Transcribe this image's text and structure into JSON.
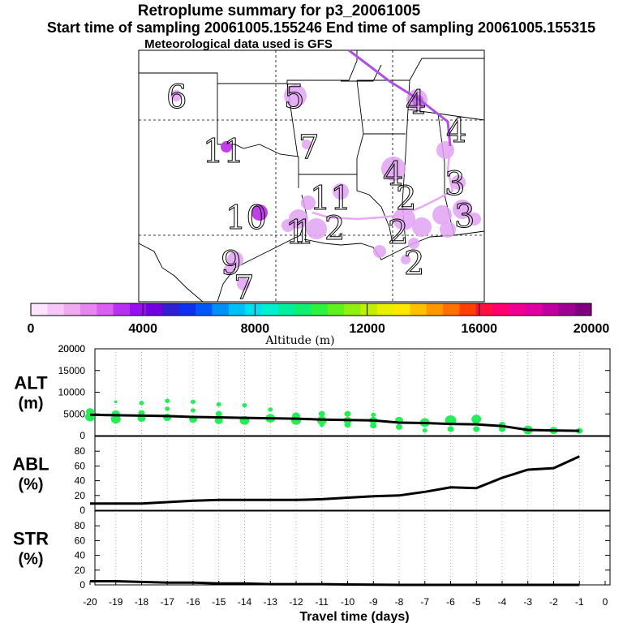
{
  "header": {
    "title": "Retroplume summary for p3_20061005",
    "sampling_line": "Start time of sampling 20061005.155246     End time of sampling 20061005.155315",
    "met_line": "Meteorological data used is GFS"
  },
  "map": {
    "day_labels": [
      "6",
      "5",
      "4",
      "4",
      "11",
      "7",
      "4",
      "3",
      "10",
      "11",
      "1",
      "2",
      "2",
      "2",
      "3",
      "1",
      "9",
      "7",
      "2"
    ]
  },
  "colors": {
    "alt_points": "#22ee55",
    "line": "#000000",
    "plume": "#e2a2f2",
    "track": "#b050e0"
  },
  "chart_data": [
    {
      "type": "colorbar",
      "title": "Altitude (m)",
      "xlabel": "Altitude (m)",
      "range": [
        0,
        20000
      ],
      "tick_labels": [
        "0",
        "4000",
        "8000",
        "12000",
        "16000",
        "20000"
      ],
      "colors": [
        "#fde4fd",
        "#f7c8f7",
        "#f1aaf1",
        "#e886ef",
        "#d960f0",
        "#b830f0",
        "#9810f0",
        "#7000e0",
        "#3020d0",
        "#1030f0",
        "#0058f8",
        "#0090f8",
        "#00c0f8",
        "#00e0f0",
        "#00f0d0",
        "#00f0a0",
        "#10f070",
        "#30f040",
        "#60f020",
        "#90f010",
        "#c0f000",
        "#e8f000",
        "#ffe800",
        "#ffc000",
        "#ff9800",
        "#ff7000",
        "#ff4000",
        "#ff1040",
        "#ff0070",
        "#f00090",
        "#e000a0",
        "#c000a0",
        "#a00090",
        "#800080"
      ]
    },
    {
      "type": "scatter",
      "name": "ALT",
      "ylabel": "ALT\n(m)",
      "ylim": [
        0,
        20000
      ],
      "y_tick_labels": [
        "0",
        "5000",
        "10000",
        "15000",
        "20000"
      ],
      "xlim": [
        -20,
        0
      ],
      "line": {
        "x": [
          -20,
          -19,
          -18,
          -17,
          -16,
          -15,
          -14,
          -13,
          -12,
          -11,
          -10,
          -9,
          -8,
          -7,
          -6,
          -5,
          -4,
          -3,
          -2,
          -1
        ],
        "y": [
          4800,
          4700,
          4600,
          4500,
          4300,
          4200,
          4100,
          4000,
          3900,
          3700,
          3600,
          3500,
          3000,
          2900,
          2700,
          2600,
          2200,
          1300,
          1200,
          1100
        ]
      },
      "points": [
        {
          "x": -20,
          "y": 5500,
          "r": 5
        },
        {
          "x": -20,
          "y": 4300,
          "r": 6
        },
        {
          "x": -19,
          "y": 7800,
          "r": 2
        },
        {
          "x": -19,
          "y": 5000,
          "r": 5
        },
        {
          "x": -19,
          "y": 3800,
          "r": 6
        },
        {
          "x": -18,
          "y": 7500,
          "r": 3
        },
        {
          "x": -18,
          "y": 5200,
          "r": 4
        },
        {
          "x": -18,
          "y": 4000,
          "r": 5
        },
        {
          "x": -17,
          "y": 8000,
          "r": 3
        },
        {
          "x": -17,
          "y": 6200,
          "r": 3
        },
        {
          "x": -17,
          "y": 4200,
          "r": 5
        },
        {
          "x": -16,
          "y": 7800,
          "r": 3
        },
        {
          "x": -16,
          "y": 5800,
          "r": 3
        },
        {
          "x": -16,
          "y": 3800,
          "r": 5
        },
        {
          "x": -15,
          "y": 7200,
          "r": 3
        },
        {
          "x": -15,
          "y": 5000,
          "r": 4
        },
        {
          "x": -15,
          "y": 3500,
          "r": 5
        },
        {
          "x": -14,
          "y": 7000,
          "r": 3
        },
        {
          "x": -14,
          "y": 3500,
          "r": 6
        },
        {
          "x": -13,
          "y": 6000,
          "r": 3
        },
        {
          "x": -13,
          "y": 4000,
          "r": 6
        },
        {
          "x": -12,
          "y": 4500,
          "r": 5
        },
        {
          "x": -12,
          "y": 3500,
          "r": 6
        },
        {
          "x": -11,
          "y": 5000,
          "r": 4
        },
        {
          "x": -11,
          "y": 3500,
          "r": 6
        },
        {
          "x": -11,
          "y": 2500,
          "r": 3
        },
        {
          "x": -10,
          "y": 5000,
          "r": 4
        },
        {
          "x": -10,
          "y": 3500,
          "r": 5
        },
        {
          "x": -10,
          "y": 2500,
          "r": 4
        },
        {
          "x": -9,
          "y": 4800,
          "r": 3
        },
        {
          "x": -9,
          "y": 3500,
          "r": 5
        },
        {
          "x": -9,
          "y": 2300,
          "r": 4
        },
        {
          "x": -8,
          "y": 3500,
          "r": 5
        },
        {
          "x": -8,
          "y": 2000,
          "r": 4
        },
        {
          "x": -7,
          "y": 3000,
          "r": 6
        },
        {
          "x": -7,
          "y": 1200,
          "r": 3
        },
        {
          "x": -6,
          "y": 3500,
          "r": 7
        },
        {
          "x": -6,
          "y": 1500,
          "r": 4
        },
        {
          "x": -5,
          "y": 3800,
          "r": 6
        },
        {
          "x": -5,
          "y": 1500,
          "r": 4
        },
        {
          "x": -4,
          "y": 2500,
          "r": 4
        },
        {
          "x": -4,
          "y": 1500,
          "r": 4
        },
        {
          "x": -3,
          "y": 1300,
          "r": 6
        },
        {
          "x": -2,
          "y": 1200,
          "r": 5
        },
        {
          "x": -1,
          "y": 1100,
          "r": 4
        }
      ]
    },
    {
      "type": "line",
      "name": "ABL",
      "ylabel": "ABL\n(%)",
      "ylim": [
        0,
        100
      ],
      "y_tick_labels": [
        "0",
        "20",
        "40",
        "60",
        "80"
      ],
      "xlim": [
        -20,
        0
      ],
      "x": [
        -20,
        -19,
        -18,
        -17,
        -16,
        -15,
        -14,
        -13,
        -12,
        -11,
        -10,
        -9,
        -8,
        -7,
        -6,
        -5,
        -4,
        -3,
        -2,
        -1
      ],
      "y": [
        9,
        9,
        9,
        11,
        13,
        14,
        14,
        14,
        14,
        15,
        17,
        19,
        20,
        25,
        31,
        30,
        44,
        55,
        57,
        73
      ]
    },
    {
      "type": "line",
      "name": "STR",
      "ylabel": "STR\n(%)",
      "ylim": [
        0,
        100
      ],
      "y_tick_labels": [
        "0",
        "20",
        "40",
        "60",
        "80"
      ],
      "xlim": [
        -20,
        0
      ],
      "xlabel": "Travel time (days)",
      "x_tick_labels": [
        "-20",
        "-19",
        "-18",
        "-17",
        "-16",
        "-15",
        "-14",
        "-13",
        "-12",
        "-11",
        "-10",
        "-9",
        "-8",
        "-7",
        "-6",
        "-5",
        "-4",
        "-3",
        "-2",
        "-1",
        "0"
      ],
      "x": [
        -20,
        -19,
        -18,
        -17,
        -16,
        -15,
        -14,
        -13,
        -12,
        -11,
        -10,
        -9,
        -8,
        -7,
        -6,
        -5,
        -4,
        -3,
        -2,
        -1
      ],
      "y": [
        5,
        5,
        4,
        3,
        3,
        2,
        2,
        1,
        1,
        1,
        0.5,
        0.3,
        0,
        0,
        0,
        0,
        0,
        0,
        0,
        0
      ]
    }
  ]
}
